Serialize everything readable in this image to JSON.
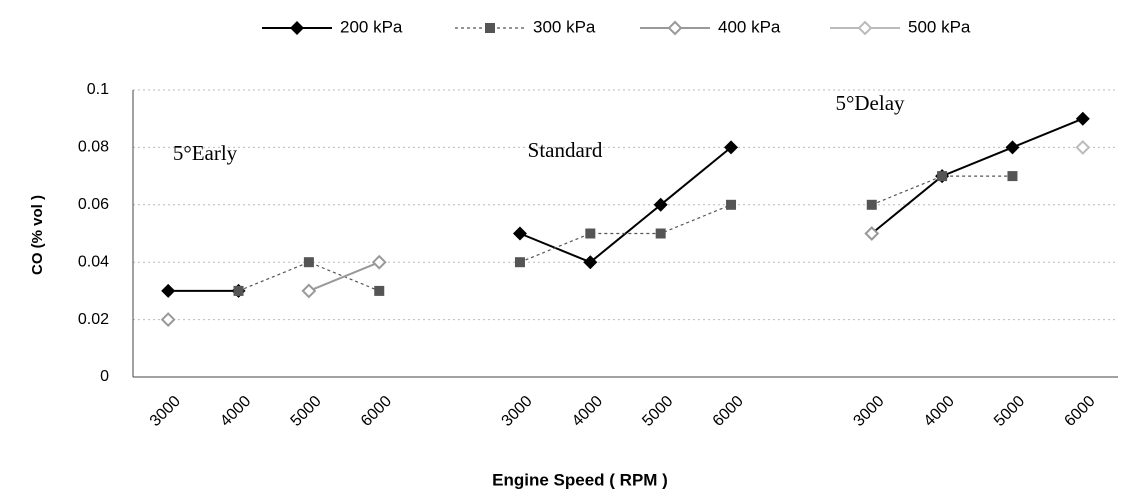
{
  "chart_data": {
    "type": "line",
    "x_label": "Engine Speed ( RPM )",
    "y_label": "CO (% vol )",
    "annotations": [
      "5°Early",
      "Standard",
      "5°Delay"
    ],
    "categories": [
      "3000",
      "4000",
      "5000",
      "6000",
      null,
      "3000",
      "4000",
      "5000",
      "6000",
      null,
      "3000",
      "4000",
      "5000",
      "6000"
    ],
    "series": [
      {
        "name": "200 kPa",
        "color": "#000000",
        "marker": "diamond",
        "dash": false,
        "values": [
          0.03,
          0.03,
          null,
          null,
          null,
          0.05,
          0.04,
          0.06,
          0.08,
          null,
          0.05,
          0.07,
          0.08,
          0.09
        ]
      },
      {
        "name": "300 kPa",
        "color": "#555555",
        "marker": "square",
        "dash": true,
        "values": [
          null,
          0.03,
          0.04,
          0.03,
          null,
          0.04,
          0.05,
          0.05,
          0.06,
          null,
          0.06,
          0.07,
          0.07,
          null
        ]
      },
      {
        "name": "400 kPa",
        "color": "#999999",
        "marker": "hollow",
        "dash": false,
        "values": [
          0.02,
          null,
          0.03,
          0.04,
          null,
          null,
          null,
          null,
          null,
          null,
          0.05,
          null,
          null,
          null
        ]
      },
      {
        "name": "500 kPa",
        "color": "#bbbbbb",
        "marker": "hollow",
        "dash": false,
        "values": [
          null,
          null,
          null,
          null,
          null,
          null,
          null,
          null,
          null,
          null,
          null,
          null,
          null,
          0.08
        ]
      }
    ],
    "ylim": [
      0,
      0.1
    ],
    "yticks": [
      0,
      0.02,
      0.04,
      0.06,
      0.08,
      0.1
    ],
    "grid": true
  }
}
